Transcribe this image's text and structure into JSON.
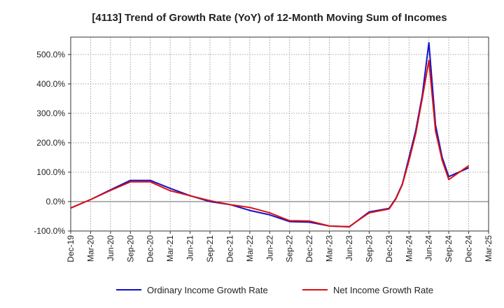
{
  "chart_data": {
    "type": "line",
    "title": "[4113]  Trend of Growth Rate (YoY) of 12-Month Moving Sum of Incomes",
    "xlabel": "",
    "ylabel": "",
    "ylim": [
      -100,
      560
    ],
    "y_ticks": [
      {
        "value": -100,
        "label": "-100.0%"
      },
      {
        "value": 0,
        "label": "0.0%"
      },
      {
        "value": 100,
        "label": "100.0%"
      },
      {
        "value": 200,
        "label": "200.0%"
      },
      {
        "value": 300,
        "label": "300.0%"
      },
      {
        "value": 400,
        "label": "400.0%"
      },
      {
        "value": 500,
        "label": "500.0%"
      }
    ],
    "x_ticks": [
      "Dec-19",
      "Mar-20",
      "Jun-20",
      "Sep-20",
      "Dec-20",
      "Mar-21",
      "Jun-21",
      "Sep-21",
      "Dec-21",
      "Mar-22",
      "Jun-22",
      "Sep-22",
      "Dec-22",
      "Mar-23",
      "Jun-23",
      "Sep-23",
      "Dec-23",
      "Mar-24",
      "Jun-24",
      "Sep-24",
      "Dec-24",
      "Mar-25"
    ],
    "x_months": [
      "Dec-19",
      "Mar-20",
      "Jun-20",
      "Sep-20",
      "Dec-20",
      "Mar-21",
      "Jun-21",
      "Sep-21",
      "Dec-21",
      "Mar-22",
      "Jun-22",
      "Sep-22",
      "Dec-22",
      "Mar-23",
      "Jun-23",
      "Sep-23",
      "Dec-23",
      "Jan-24",
      "Feb-24",
      "Mar-24",
      "Apr-24",
      "May-24",
      "Jun-24",
      "Jul-24",
      "Aug-24",
      "Sep-24",
      "Dec-24"
    ],
    "grid": true,
    "legend_position": "bottom",
    "series": [
      {
        "name": "Ordinary Income Growth Rate",
        "color": "#1111cc",
        "values": [
          -22,
          7,
          40,
          72,
          72,
          45,
          20,
          0,
          -10,
          -30,
          -45,
          -68,
          -70,
          -83,
          -86,
          -35,
          -23,
          10,
          60,
          150,
          240,
          360,
          540,
          260,
          150,
          85,
          115
        ]
      },
      {
        "name": "Net Income Growth Rate",
        "color": "#dd1111",
        "values": [
          -22,
          7,
          38,
          67,
          67,
          37,
          20,
          3,
          -10,
          -20,
          -38,
          -65,
          -66,
          -83,
          -85,
          -38,
          -25,
          8,
          58,
          140,
          230,
          350,
          480,
          240,
          140,
          75,
          122
        ]
      }
    ]
  }
}
